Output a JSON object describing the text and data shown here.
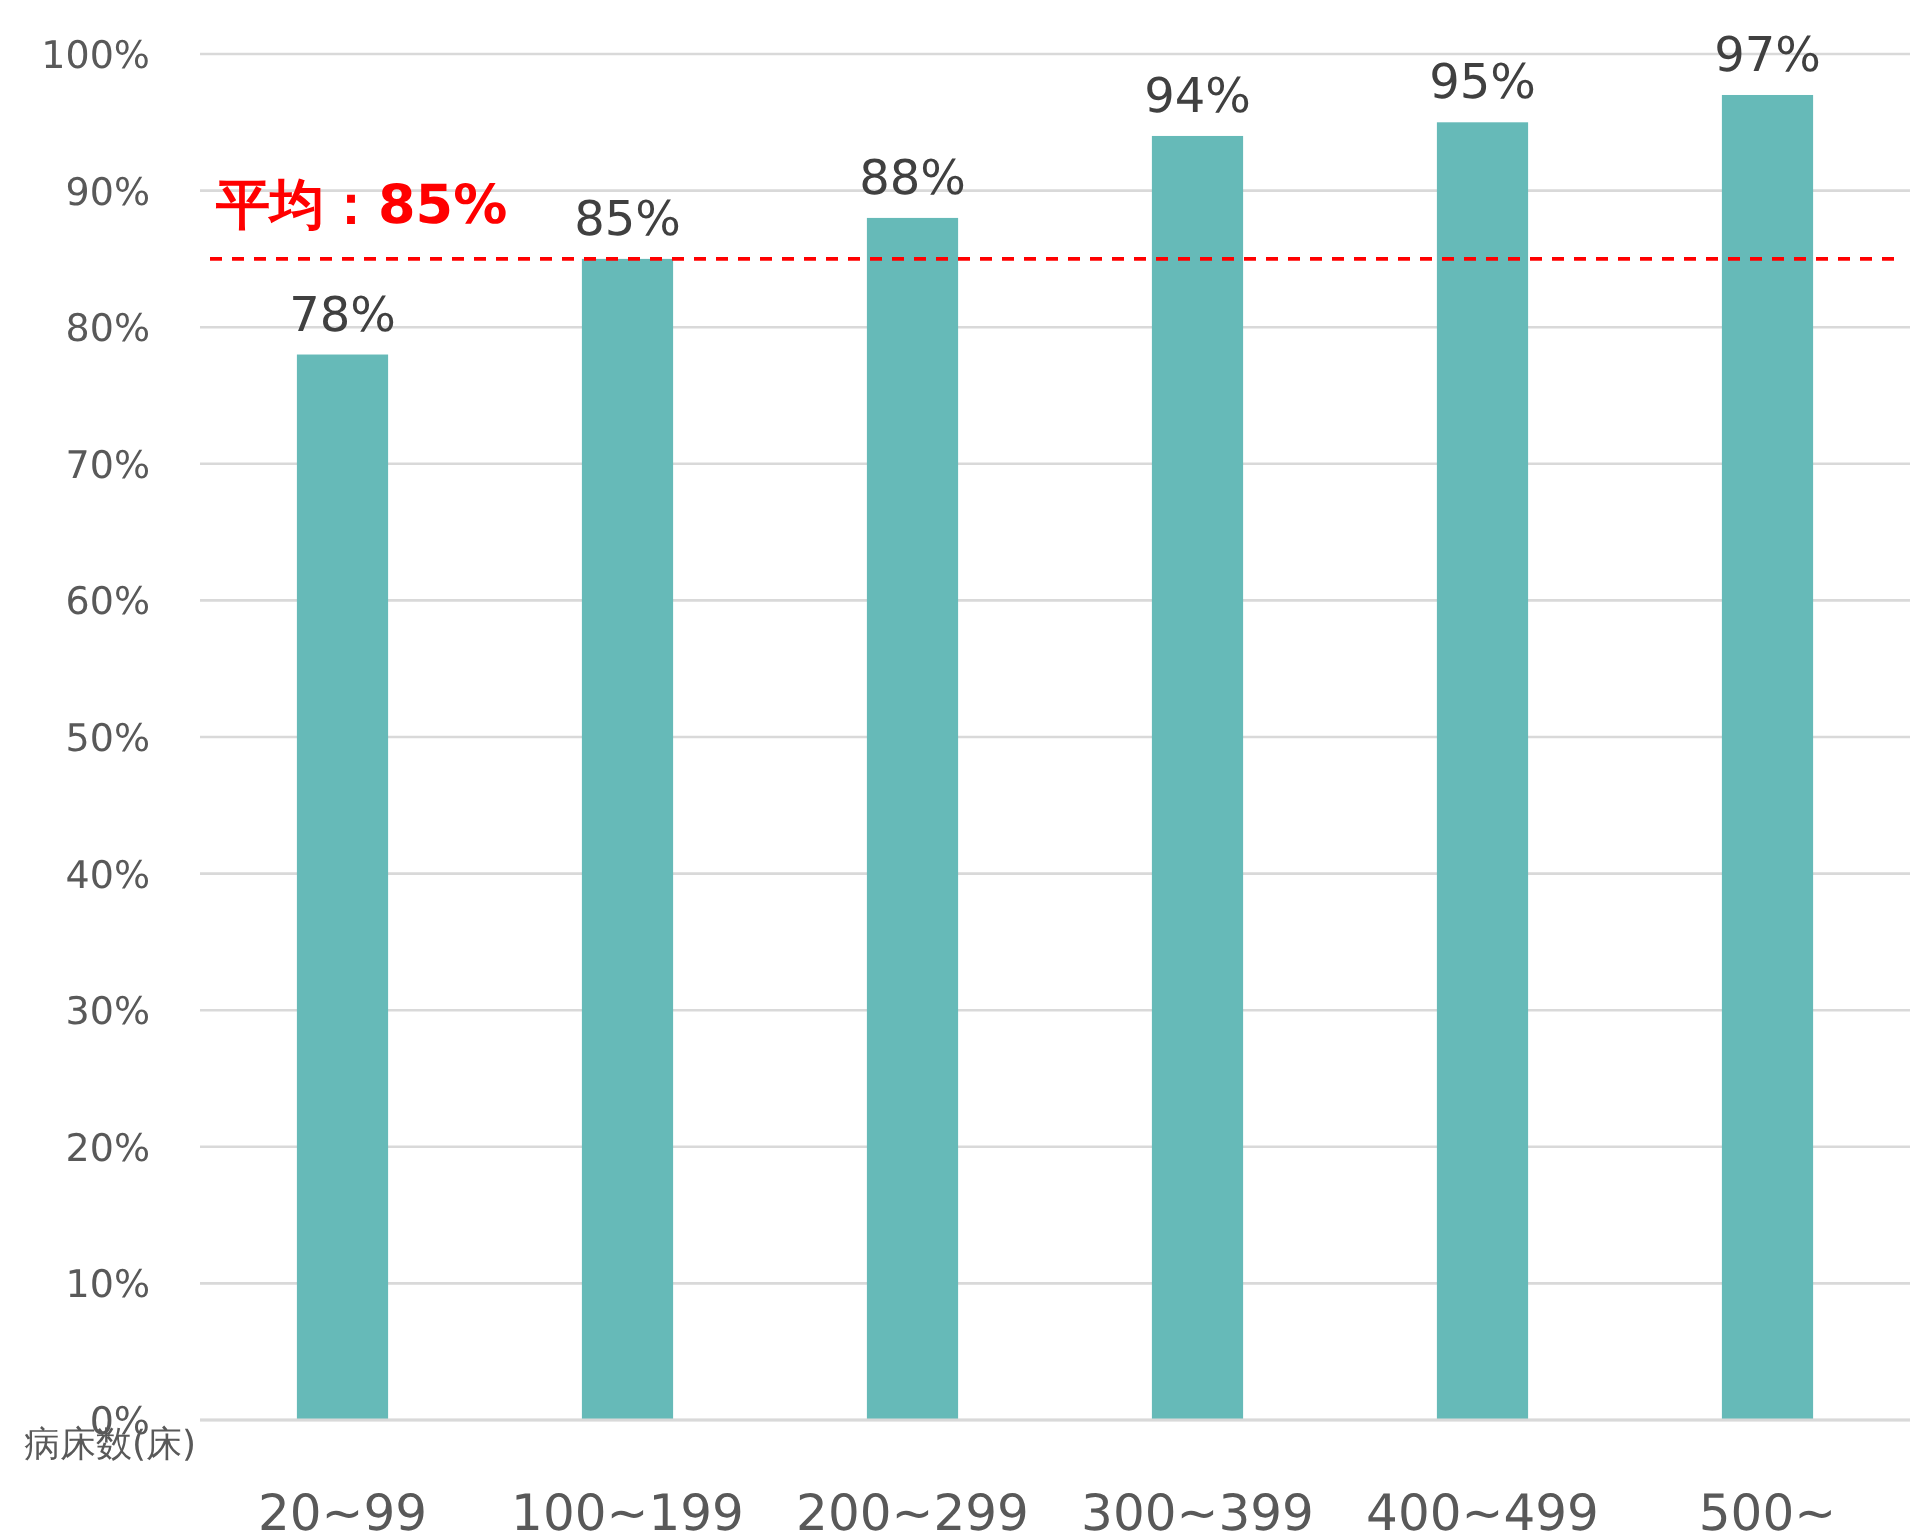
{
  "chart_data": {
    "type": "bar",
    "xlabel": "病床数(床)",
    "categories": [
      "20~99",
      "100~199",
      "200~299",
      "300~399",
      "400~499",
      "500~"
    ],
    "values": [
      78,
      85,
      88,
      94,
      95,
      97
    ],
    "value_labels": [
      "78%",
      "85%",
      "88%",
      "94%",
      "95%",
      "97%"
    ],
    "color": "#66bab8",
    "ylim": [
      0,
      100
    ],
    "yticks": [
      {
        "value": 0,
        "label": "0%"
      },
      {
        "value": 10,
        "label": "10%"
      },
      {
        "value": 20,
        "label": "20%"
      },
      {
        "value": 30,
        "label": "30%"
      },
      {
        "value": 40,
        "label": "40%"
      },
      {
        "value": 50,
        "label": "50%"
      },
      {
        "value": 60,
        "label": "60%"
      },
      {
        "value": 70,
        "label": "70%"
      },
      {
        "value": 80,
        "label": "80%"
      },
      {
        "value": 90,
        "label": "90%"
      },
      {
        "value": 100,
        "label": "100%"
      }
    ],
    "grid": "y",
    "ref_lines": [
      {
        "axis": "y",
        "value": 85,
        "label": "平均：85%",
        "color": "#ff0000",
        "line_style": "dashed"
      }
    ]
  }
}
